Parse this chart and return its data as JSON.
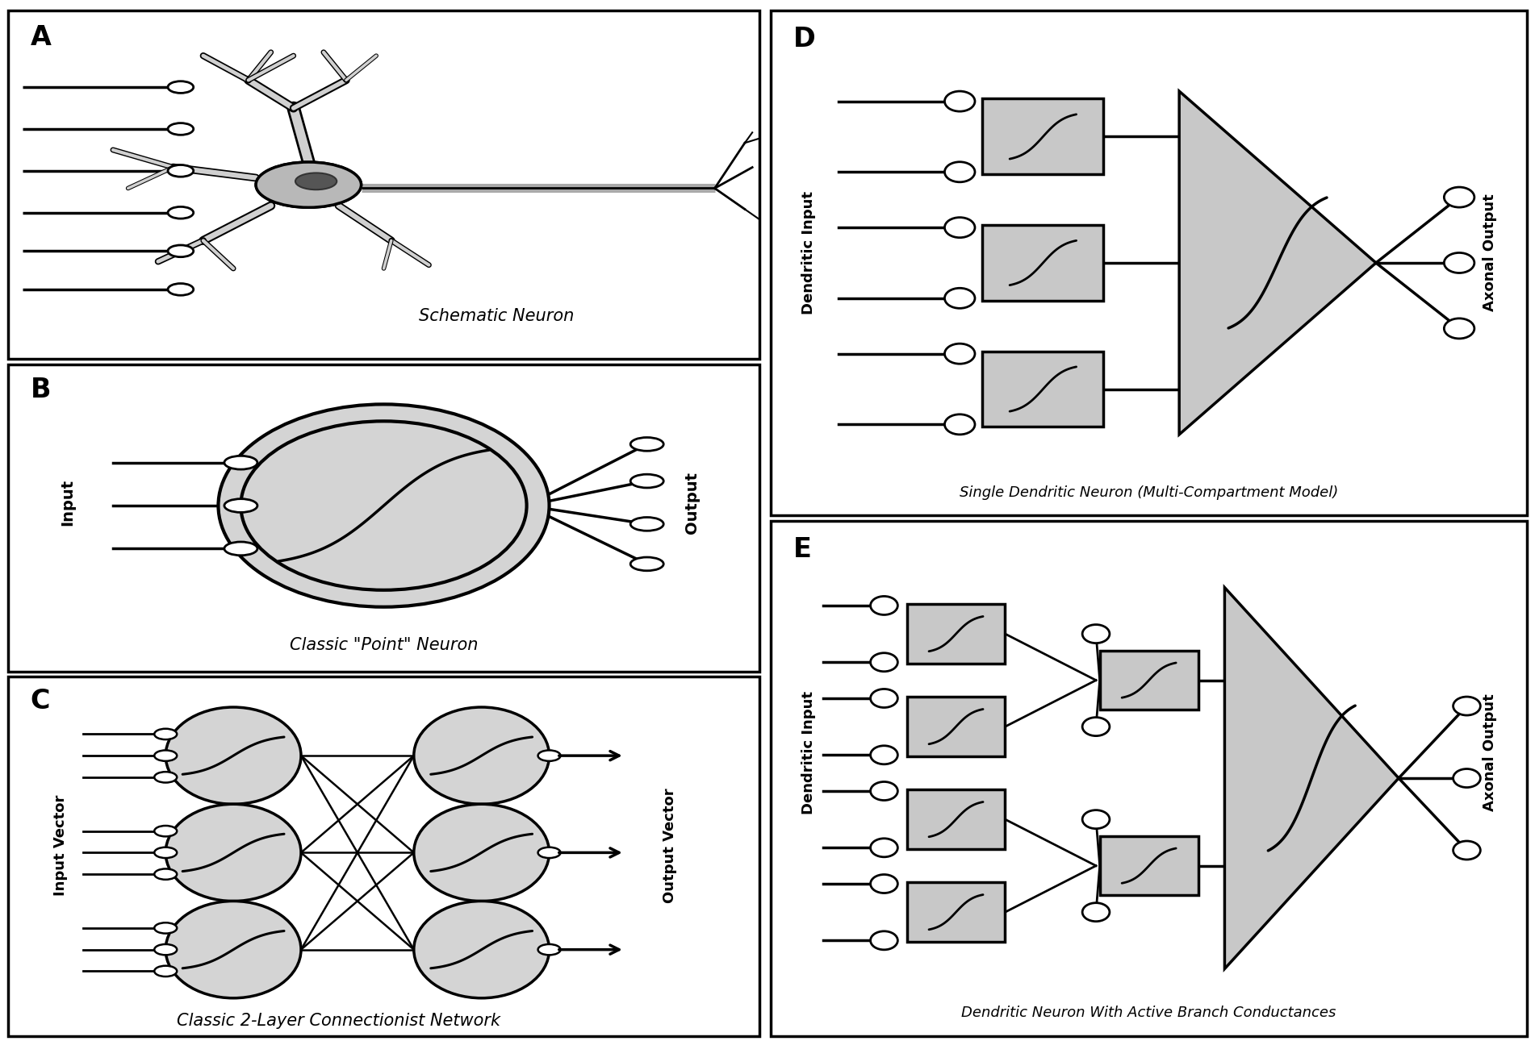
{
  "bg_color": "#ffffff",
  "panel_A_title": "Schematic Neuron",
  "panel_B_title": "Classic \"Point\" Neuron",
  "panel_C_title": "Classic 2-Layer Connectionist Network",
  "panel_D_title": "Single Dendritic Neuron (Multi-Compartment Model)",
  "panel_E_title": "Dendritic Neuron With Active Branch Conductances",
  "label_B_input": "Input",
  "label_B_output": "Output",
  "label_C_input": "Input Vector",
  "label_C_output": "Output Vector",
  "label_D_input": "Dendritic Input",
  "label_D_output": "Axonal Output",
  "label_E_input": "Dendritic Input",
  "label_E_output": "Axonal Output",
  "gray_fill": "#d4d4d4",
  "box_fill": "#c8c8c8"
}
